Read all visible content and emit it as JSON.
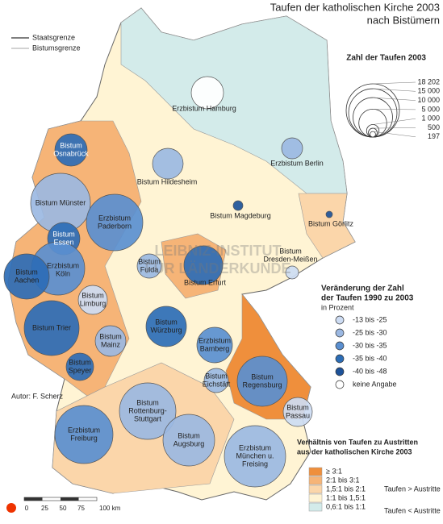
{
  "title": "Taufen der katholischen Kirche 2003",
  "subtitle": "nach Bistümern",
  "boundary_legend": [
    "Staatsgrenze",
    "Bistumsgrenze"
  ],
  "size_legend": {
    "title": "Zahl der Taufen 2003",
    "ticks": [
      {
        "value": 18202,
        "label": "18 202"
      },
      {
        "value": 15000,
        "label": "15 000"
      },
      {
        "value": 10000,
        "label": "10 000"
      },
      {
        "value": 5000,
        "label": "5 000"
      },
      {
        "value": 1000,
        "label": "1 000"
      },
      500,
      197
    ]
  },
  "change_legend": {
    "title": [
      "Veränderung der Zahl",
      "der Taufen 1990 zu 2003"
    ],
    "unit": "in Prozent",
    "items": [
      "-13 bis -25",
      "-25 bis -30",
      "-30 bis -35",
      "-35 bis -40",
      "-40 bis -48",
      "keine Angabe"
    ],
    "colors": [
      "#cddcf3",
      "#9bb8e2",
      "#5a8fd0",
      "#2c6db6",
      "#1d5299",
      "#ffffff"
    ]
  },
  "ratio_legend": {
    "title": [
      "Verhältnis von Taufen zu Austritten",
      "aus der katholischen Kirche 2003"
    ],
    "items": [
      "≥ 3:1",
      "2:1 bis 3:1",
      "1,5:1 bis 2:1",
      "1:1 bis 1,5:1",
      "0,6:1 bis 1:1"
    ],
    "colors": [
      "#ef8f3c",
      "#f6b477",
      "#fbd6aa",
      "#fff4d4",
      "#d3ebea"
    ],
    "groups": [
      "Taufen > Austritte",
      "Taufen < Austritte"
    ]
  },
  "dioceses": [
    [
      "Erzbistum Hamburg"
    ],
    [
      "Erzbistum Berlin"
    ],
    [
      "Bistum",
      "Osnabrück"
    ],
    [
      "Bistum Hildesheim"
    ],
    [
      "Bistum Münster"
    ],
    [
      "Erzbistum",
      "Paderborn"
    ],
    [
      "Bistum Magdeburg"
    ],
    [
      "Bistum Görlitz"
    ],
    [
      "Bistum",
      "Essen"
    ],
    [
      "Erzbistum",
      "Köln"
    ],
    [
      "Bistum",
      "Aachen"
    ],
    [
      "Bistum",
      "Fulda"
    ],
    [
      "Bistum Erfurt"
    ],
    [
      "Bistum",
      "Dresden-Meißen"
    ],
    [
      "Bistum",
      "Limburg"
    ],
    [
      "Bistum Trier"
    ],
    [
      "Bistum",
      "Mainz"
    ],
    [
      "Bistum",
      "Würzburg"
    ],
    [
      "Erzbistum",
      "Bamberg"
    ],
    [
      "Bistum",
      "Speyer"
    ],
    [
      "Bistum",
      "Eichstätt"
    ],
    [
      "Bistum",
      "Regensburg"
    ],
    [
      "Bistum",
      "Rottenburg-",
      "Stuttgart"
    ],
    [
      "Bistum",
      "Passau"
    ],
    [
      "Erzbistum",
      "Freiburg"
    ],
    [
      "Bistum",
      "Augsburg"
    ],
    [
      "Erzbistum",
      "München u.",
      "Freising"
    ]
  ],
  "author": "Autor:   F. Scherz",
  "scale": [
    "0",
    "25",
    "50",
    "75",
    "100 km"
  ],
  "watermark": [
    "LEIBNIZ-INSTITUT",
    "FÜR LÄNDERKUNDE"
  ]
}
